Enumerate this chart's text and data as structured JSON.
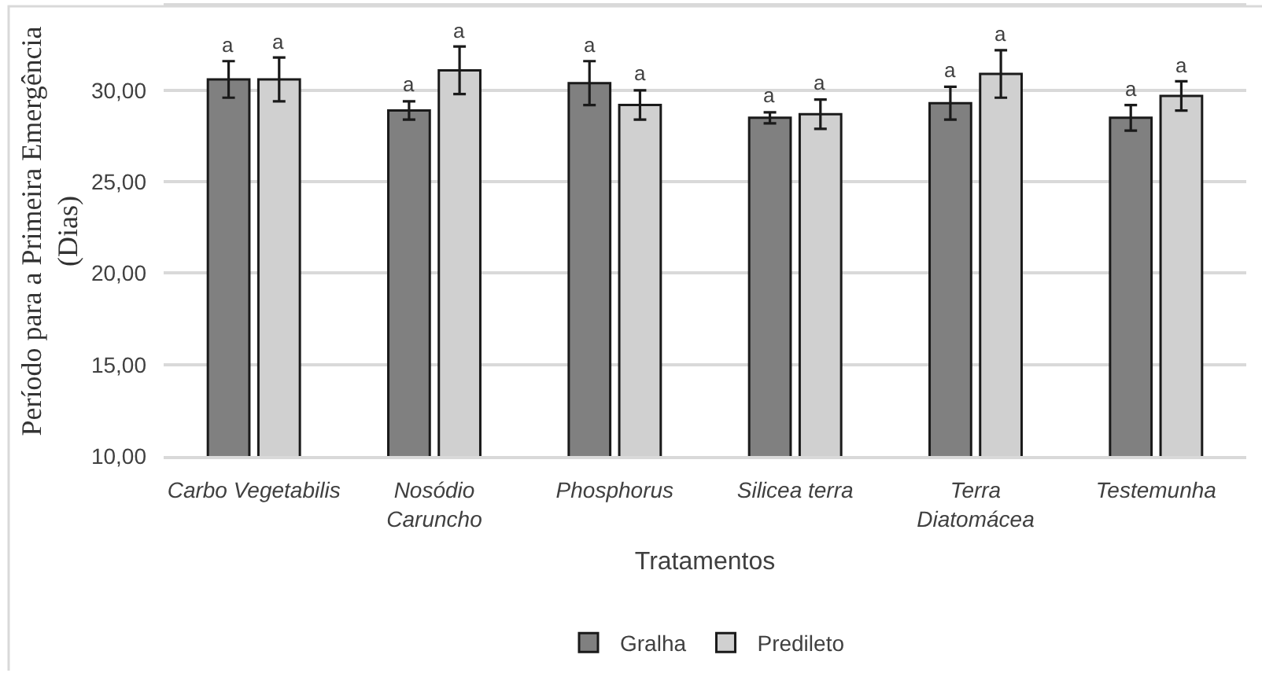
{
  "chart_data": {
    "type": "bar",
    "xlabel": "Tratamentos",
    "ylabel": "Período para a Primeira Emergência\n(Dias)",
    "categories": [
      "Carbo Vegetabilis",
      "Nosódio\nCaruncho",
      "Phosphorus",
      "Silicea terra",
      "Terra\nDiatomácea",
      "Testemunha"
    ],
    "series": [
      {
        "name": "Gralha",
        "color": "#808080",
        "values": [
          30.6,
          28.9,
          30.4,
          28.5,
          29.3,
          28.5
        ],
        "errors": [
          1.0,
          0.5,
          1.2,
          0.3,
          0.9,
          0.7
        ],
        "value_labels": [
          "a",
          "a",
          "a",
          "a",
          "a",
          "a"
        ]
      },
      {
        "name": "Predileto",
        "color": "#d0d0d0",
        "values": [
          30.6,
          31.1,
          29.2,
          28.7,
          30.9,
          29.7
        ],
        "errors": [
          1.2,
          1.3,
          0.8,
          0.8,
          1.3,
          0.8
        ],
        "value_labels": [
          "a",
          "a",
          "a",
          "a",
          "a",
          "a"
        ]
      }
    ],
    "ylim": [
      10,
      34.6
    ],
    "yticks": [
      {
        "value": 10,
        "label": "10,00"
      },
      {
        "value": 15,
        "label": "15,00"
      },
      {
        "value": 20,
        "label": "20,00"
      },
      {
        "value": 25,
        "label": "25,00"
      },
      {
        "value": 30,
        "label": "30,00"
      }
    ],
    "grid": "y",
    "legend": "bottom"
  }
}
